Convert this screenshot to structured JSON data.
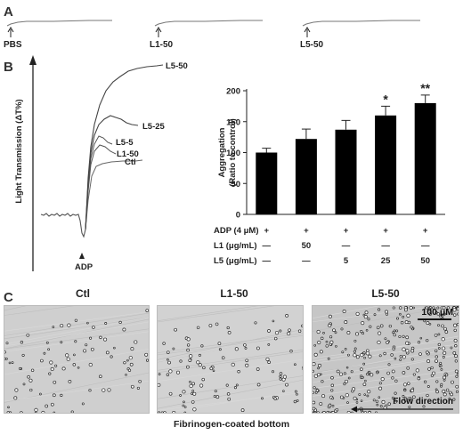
{
  "panels": {
    "a_letter": "A",
    "b_letter": "B",
    "c_letter": "C"
  },
  "panel_a": {
    "traces": [
      {
        "label": "PBS"
      },
      {
        "label": "L1-50"
      },
      {
        "label": "L5-50"
      }
    ]
  },
  "panel_b_traces": {
    "ylabel": "Light Transmission (ΔT%)",
    "marker_label": "ADP",
    "trace_labels": [
      "L5-50",
      "L5-25",
      "L5-5",
      "L1-50",
      "Ctl"
    ]
  },
  "chart_data": {
    "type": "bar",
    "ylabel": "Aggregation (Ratio to control)",
    "ylabel_line1": "Aggregation",
    "ylabel_line2": "(Ratio to control)",
    "ylim": [
      0,
      200
    ],
    "yticks": [
      "0",
      "50",
      "100",
      "150",
      "200"
    ],
    "values": [
      100,
      122,
      137,
      160,
      180
    ],
    "errors": [
      7,
      16,
      15,
      15,
      13
    ],
    "significance": [
      "",
      "",
      "",
      "*",
      "**"
    ],
    "conditions": [
      {
        "name": "ADP (4 μM)",
        "cells": [
          "+",
          "+",
          "+",
          "+",
          "+"
        ]
      },
      {
        "name": "L1 (μg/mL)",
        "cells": [
          "—",
          "50",
          "—",
          "—",
          "—"
        ]
      },
      {
        "name": "L5 (μg/mL)",
        "cells": [
          "—",
          "—",
          "5",
          "25",
          "50"
        ]
      }
    ]
  },
  "panel_c": {
    "images": [
      {
        "title": "Ctl"
      },
      {
        "title": "L1-50"
      },
      {
        "title": "L5-50"
      }
    ],
    "scale_bar": "100 μM",
    "flow_label": "Flow direction",
    "caption": "Fibrinogen-coated bottom"
  }
}
